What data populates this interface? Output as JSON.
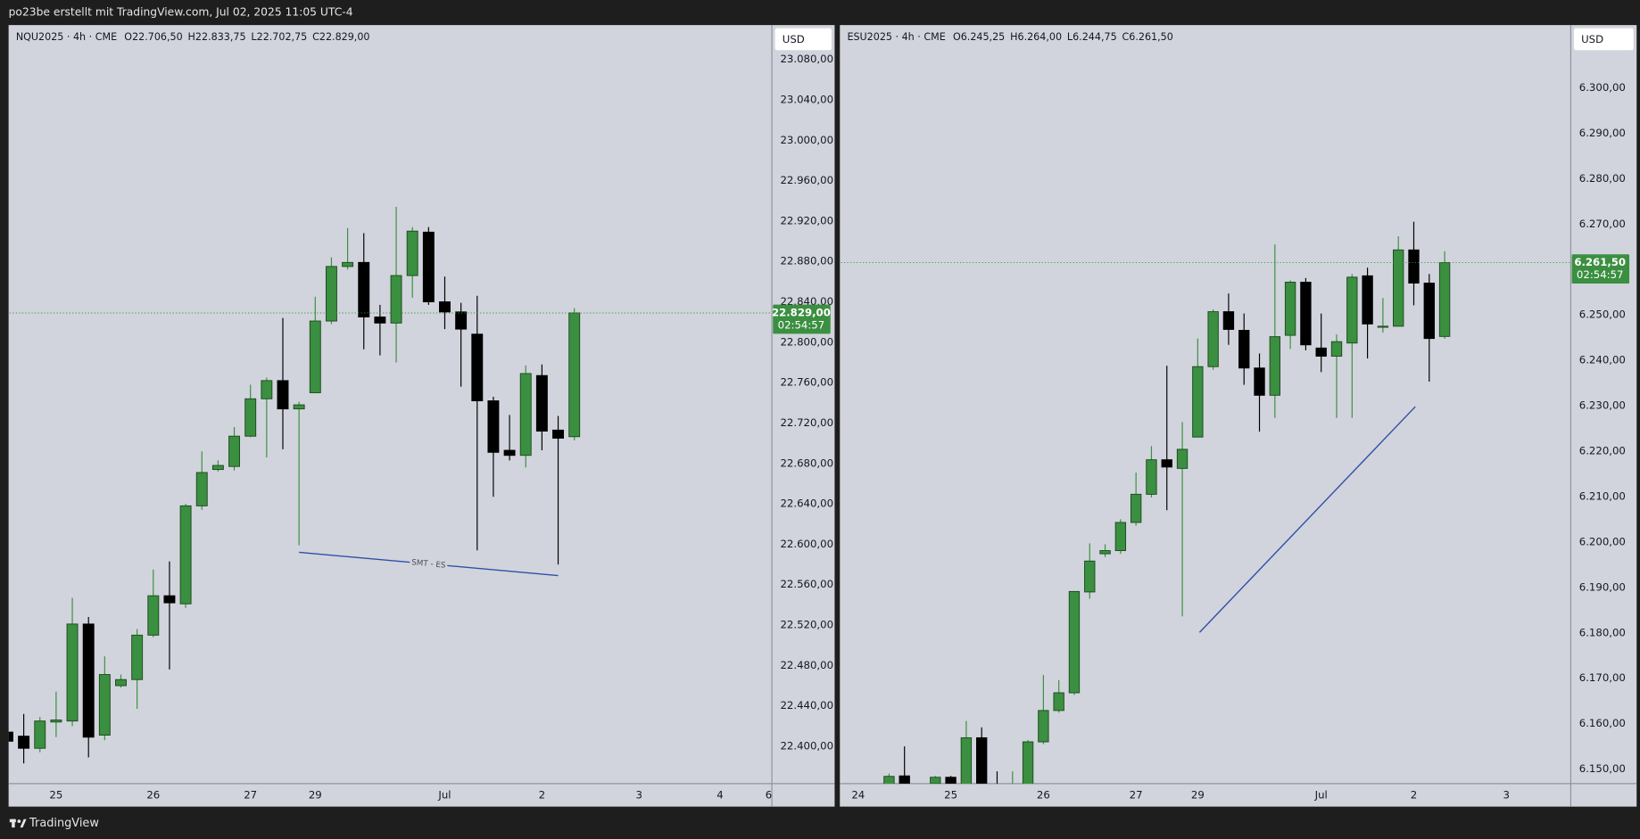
{
  "header": {
    "title": "po23be erstellt mit TradingView.com, Jul 02, 2025 11:05 UTC-4"
  },
  "chart_data": [
    {
      "type": "candlestick",
      "symbol": "NQU2025 · 4h · CME",
      "ohlc_legend": [
        "O22.706,50",
        "H22.833,75",
        "L22.702,75",
        "C22.829,00"
      ],
      "currency": "USD",
      "open": [
        22414,
        22410,
        22398,
        22424,
        22425,
        22521,
        22411,
        22460,
        22466,
        22510,
        22549,
        22541,
        22638,
        22674,
        22677,
        22707,
        22744,
        22762,
        22734,
        22750,
        22821,
        22875,
        22879,
        22825,
        22819,
        22866,
        22909,
        22840,
        22830,
        22808,
        22742,
        22693,
        22688,
        22767,
        22713,
        22706.5
      ],
      "high": [
        22417,
        22432,
        22429,
        22454,
        22547,
        22528,
        22489,
        22471,
        22516,
        22575,
        22583,
        22640,
        22692,
        22683,
        22716,
        22758,
        22765,
        22824,
        22741,
        22845,
        22884,
        22913,
        22908,
        22837,
        22934,
        22914,
        22914,
        22865,
        22839,
        22846,
        22746,
        22728,
        22777,
        22778,
        22727,
        22833.75
      ],
      "low": [
        22403,
        22383,
        22394,
        22409,
        22420,
        22389,
        22406,
        22458,
        22437,
        22508,
        22476,
        22537,
        22634,
        22672,
        22673,
        22706,
        22686,
        22694,
        22599,
        22750,
        22818,
        22872,
        22793,
        22787,
        22780,
        22844,
        22837,
        22813,
        22756,
        22594,
        22647,
        22683,
        22676,
        22693,
        22580,
        22702.75
      ],
      "close": [
        22405,
        22398,
        22425,
        22426,
        22521,
        22409,
        22471,
        22466,
        22510,
        22549,
        22542,
        22638,
        22671,
        22678,
        22707,
        22744,
        22762,
        22734,
        22738,
        22821,
        22875,
        22879,
        22825,
        22819,
        22866,
        22910,
        22840,
        22830,
        22813,
        22742,
        22691,
        22688,
        22769,
        22712,
        22705,
        22829
      ],
      "up_color": "#3b8f40",
      "down_color": "#000000",
      "grid": false,
      "xlim": [
        0.13,
        47.2
      ],
      "xticks": [
        {
          "value": 3,
          "label": "25"
        },
        {
          "value": 9,
          "label": "26"
        },
        {
          "value": 15,
          "label": "27"
        },
        {
          "value": 19,
          "label": "29"
        },
        {
          "value": 27,
          "label": "Jul"
        },
        {
          "value": 33,
          "label": "2"
        },
        {
          "value": 39,
          "label": "3"
        },
        {
          "value": 44,
          "label": "4"
        },
        {
          "value": 47,
          "label": "6"
        }
      ],
      "ylim": [
        22363,
        23114
      ],
      "yticks": [
        {
          "value": 22400,
          "label": "22.400,00"
        },
        {
          "value": 22440,
          "label": "22.440,00"
        },
        {
          "value": 22480,
          "label": "22.480,00"
        },
        {
          "value": 22520,
          "label": "22.520,00"
        },
        {
          "value": 22560,
          "label": "22.560,00"
        },
        {
          "value": 22600,
          "label": "22.600,00"
        },
        {
          "value": 22640,
          "label": "22.640,00"
        },
        {
          "value": 22680,
          "label": "22.680,00"
        },
        {
          "value": 22720,
          "label": "22.720,00"
        },
        {
          "value": 22760,
          "label": "22.760,00"
        },
        {
          "value": 22800,
          "label": "22.800,00"
        },
        {
          "value": 22840,
          "label": "22.840,00"
        },
        {
          "value": 22880,
          "label": "22.880,00"
        },
        {
          "value": 22920,
          "label": "22.920,00"
        },
        {
          "value": 22960,
          "label": "22.960,00"
        },
        {
          "value": 23000,
          "label": "23.000,00"
        },
        {
          "value": 23040,
          "label": "23.040,00"
        },
        {
          "value": 23080,
          "label": "23.080,00"
        }
      ],
      "last_price": {
        "value": 22829,
        "label": "22.829,00"
      },
      "countdown": "02:54:57",
      "trendline": {
        "x": [
          18,
          34
        ],
        "y": [
          22592,
          22569
        ],
        "label": "SMT - ES",
        "color": "#2f4fa8"
      }
    },
    {
      "type": "candlestick",
      "symbol": "ESU2025 · 4h · CME",
      "ohlc_legend": [
        "O6.245,25",
        "H6.264,00",
        "L6.244,75",
        "C6.261,50"
      ],
      "currency": "USD",
      "open": [
        6146.5,
        6148.5,
        null,
        6146.8,
        6148.2,
        6146,
        6156.9,
        6145,
        6144,
        6146,
        6156,
        6162.9,
        6166.8,
        6189,
        6197.4,
        6198.1,
        6204.3,
        6210.5,
        6218.1,
        6216.2,
        6223.1,
        6238.6,
        6250.7,
        6246.6,
        6238.3,
        6232.3,
        6245.5,
        6257.2,
        6242.7,
        6240.9,
        6243.8,
        6258.6,
        6247.3,
        6247.5,
        6264.3,
        6257,
        6245.25
      ],
      "high": [
        6149,
        6155,
        null,
        6148.5,
        6148.5,
        6160.6,
        6159.2,
        6149.5,
        6149.5,
        6156.4,
        6170.7,
        6169.6,
        6189.2,
        6199.7,
        6199.5,
        6205,
        6215.3,
        6221.1,
        6238.8,
        6226.4,
        6244.8,
        6251.2,
        6254.7,
        6250.3,
        6241.5,
        6265.5,
        6257.6,
        6258.1,
        6250.3,
        6245.7,
        6259,
        6260.4,
        6253.7,
        6267.3,
        6270.5,
        6259,
        6264
      ],
      "low": [
        6146,
        6145,
        null,
        6146,
        6145,
        6145,
        6145,
        6142,
        6143,
        6145,
        6155.5,
        6162.4,
        6166.3,
        6187.5,
        6196.7,
        6197.4,
        6203.6,
        6209.8,
        6207,
        6183.6,
        6223.1,
        6237.9,
        6243.4,
        6234.6,
        6224.3,
        6227.3,
        6242.5,
        6242.2,
        6237.4,
        6227.3,
        6227.3,
        6240.4,
        6246.1,
        6247.5,
        6252.1,
        6235.3,
        6244.75
      ],
      "close": [
        6148.4,
        6146,
        null,
        6148.2,
        6146,
        6156.9,
        6146,
        6144,
        6146,
        6156,
        6162.9,
        6166.8,
        6189.1,
        6195.8,
        6198.1,
        6204.3,
        6210.5,
        6218.1,
        6216.5,
        6220.4,
        6238.6,
        6250.7,
        6246.8,
        6238.3,
        6232.3,
        6245.2,
        6257.2,
        6243.4,
        6240.9,
        6244.1,
        6258.3,
        6248,
        6247.5,
        6264.3,
        6257,
        6244.8,
        6261.5
      ],
      "up_color": "#3b8f40",
      "down_color": "#000000",
      "grid": false,
      "xlim": [
        -3.12,
        44.17
      ],
      "xticks": [
        {
          "value": -2,
          "label": "24"
        },
        {
          "value": 4,
          "label": "25"
        },
        {
          "value": 10,
          "label": "26"
        },
        {
          "value": 16,
          "label": "27"
        },
        {
          "value": 20,
          "label": "29"
        },
        {
          "value": 28,
          "label": "Jul"
        },
        {
          "value": 34,
          "label": "2"
        },
        {
          "value": 40,
          "label": "3"
        }
      ],
      "ylim": [
        6146.8,
        6313.8
      ],
      "yticks": [
        {
          "value": 6150,
          "label": "6.150,00"
        },
        {
          "value": 6160,
          "label": "6.160,00"
        },
        {
          "value": 6170,
          "label": "6.170,00"
        },
        {
          "value": 6180,
          "label": "6.180,00"
        },
        {
          "value": 6190,
          "label": "6.190,00"
        },
        {
          "value": 6200,
          "label": "6.200,00"
        },
        {
          "value": 6210,
          "label": "6.210,00"
        },
        {
          "value": 6220,
          "label": "6.220,00"
        },
        {
          "value": 6230,
          "label": "6.230,00"
        },
        {
          "value": 6240,
          "label": "6.240,00"
        },
        {
          "value": 6250,
          "label": "6.250,00"
        },
        {
          "value": 6260,
          "label": "6.260,00"
        },
        {
          "value": 6270,
          "label": "6.270,00"
        },
        {
          "value": 6280,
          "label": "6.280,00"
        },
        {
          "value": 6290,
          "label": "6.290,00"
        },
        {
          "value": 6300,
          "label": "6.300,00"
        }
      ],
      "last_price": {
        "value": 6261.5,
        "label": "6.261,50"
      },
      "countdown": "02:54:57",
      "trendline": {
        "x": [
          20.12,
          34.1
        ],
        "y": [
          6180.1,
          6229.8
        ],
        "color": "#2f4fa8"
      }
    }
  ],
  "footer": {
    "brand": "TradingView"
  }
}
